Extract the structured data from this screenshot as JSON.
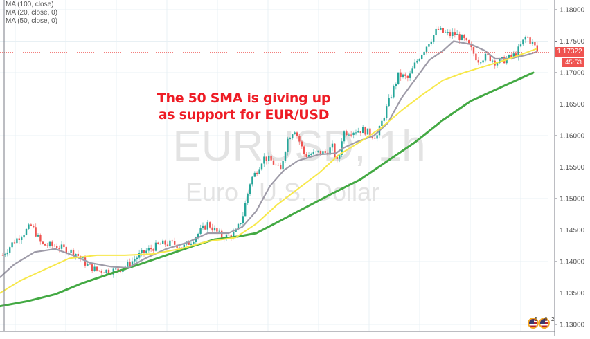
{
  "chart_data": {
    "type": "candlestick",
    "symbol": "EURUSD",
    "timeframe": "1h",
    "watermark_title": "EURUSD, 1h",
    "watermark_subtitle": "Euro / U.S. Dollar",
    "title": "The 50 SMA is giving up as support for EUR/USD",
    "ylabel": "",
    "xlabel": "",
    "ylim": [
      1.128,
      1.1815
    ],
    "yticks": [
      1.13,
      1.135,
      1.14,
      1.145,
      1.15,
      1.155,
      1.16,
      1.165,
      1.17,
      1.175,
      1.18
    ],
    "ytick_labels": [
      "1.13000",
      "1.13500",
      "1.14000",
      "1.14500",
      "1.15000",
      "1.15500",
      "1.16000",
      "1.16500",
      "1.17000",
      "1.17500",
      "1.18000"
    ],
    "grid": true,
    "legend_position": "top-left",
    "last_price": 1.17322,
    "last_price_label": "1.17322",
    "countdown": "45:53",
    "up_color": "#26a69a",
    "down_color": "#ef5350",
    "indicators": [
      {
        "name": "MA (100, close)",
        "color": "#43a943",
        "width": 3,
        "points": [
          [
            0,
            1.1329
          ],
          [
            40,
            1.1337
          ],
          [
            80,
            1.1348
          ],
          [
            120,
            1.1366
          ],
          [
            160,
            1.1381
          ],
          [
            200,
            1.1395
          ],
          [
            240,
            1.141
          ],
          [
            280,
            1.1425
          ],
          [
            310,
            1.1435
          ],
          [
            345,
            1.144
          ],
          [
            370,
            1.1445
          ],
          [
            400,
            1.1462
          ],
          [
            440,
            1.1485
          ],
          [
            480,
            1.1508
          ],
          [
            520,
            1.153
          ],
          [
            560,
            1.156
          ],
          [
            600,
            1.159
          ],
          [
            640,
            1.1625
          ],
          [
            680,
            1.1655
          ],
          [
            720,
            1.1675
          ],
          [
            770,
            1.17
          ]
        ]
      },
      {
        "name": "MA (20, close, 0)",
        "color": "#9e9ba8",
        "width": 2.2,
        "points": [
          [
            0,
            1.1375
          ],
          [
            20,
            1.1395
          ],
          [
            50,
            1.1415
          ],
          [
            80,
            1.142
          ],
          [
            105,
            1.141
          ],
          [
            130,
            1.1398
          ],
          [
            160,
            1.1392
          ],
          [
            185,
            1.139
          ],
          [
            210,
            1.1405
          ],
          [
            240,
            1.142
          ],
          [
            270,
            1.143
          ],
          [
            300,
            1.1445
          ],
          [
            330,
            1.1445
          ],
          [
            350,
            1.1455
          ],
          [
            370,
            1.148
          ],
          [
            390,
            1.152
          ],
          [
            410,
            1.1545
          ],
          [
            430,
            1.156
          ],
          [
            460,
            1.157
          ],
          [
            485,
            1.1572
          ],
          [
            495,
            1.158
          ],
          [
            515,
            1.159
          ],
          [
            540,
            1.16
          ],
          [
            560,
            1.162
          ],
          [
            580,
            1.166
          ],
          [
            600,
            1.169
          ],
          [
            620,
            1.172
          ],
          [
            640,
            1.1735
          ],
          [
            655,
            1.175
          ],
          [
            680,
            1.1745
          ],
          [
            700,
            1.1735
          ],
          [
            715,
            1.1722
          ],
          [
            735,
            1.1722
          ],
          [
            760,
            1.1728
          ],
          [
            775,
            1.1733
          ]
        ]
      },
      {
        "name": "MA (50, close, 0)",
        "color": "#f7e84a",
        "width": 2,
        "points": [
          [
            0,
            1.135
          ],
          [
            30,
            1.137
          ],
          [
            60,
            1.1385
          ],
          [
            100,
            1.1405
          ],
          [
            140,
            1.141
          ],
          [
            180,
            1.141
          ],
          [
            220,
            1.1412
          ],
          [
            260,
            1.142
          ],
          [
            300,
            1.1432
          ],
          [
            340,
            1.1438
          ],
          [
            370,
            1.146
          ],
          [
            400,
            1.149
          ],
          [
            430,
            1.1515
          ],
          [
            460,
            1.154
          ],
          [
            490,
            1.157
          ],
          [
            520,
            1.159
          ],
          [
            550,
            1.1612
          ],
          [
            580,
            1.164
          ],
          [
            610,
            1.1665
          ],
          [
            640,
            1.1688
          ],
          [
            670,
            1.17
          ],
          [
            700,
            1.171
          ],
          [
            730,
            1.172
          ],
          [
            760,
            1.1732
          ],
          [
            775,
            1.1738
          ]
        ]
      }
    ]
  },
  "legend": {
    "items": [
      "MA (100, close)",
      "MA (20, close, 0)",
      "MA (50, close, 0)"
    ]
  },
  "annotation": {
    "line1": "The 50 SMA is giving up",
    "line2": "as support for EUR/USD"
  },
  "axis": {
    "price_label": "1.17322",
    "timer_label": "45:53"
  },
  "events": {
    "labels": [
      "5",
      "6",
      "2"
    ]
  },
  "colors": {
    "background": "#ffffff",
    "grid": "#e8f0f4",
    "axis_border": "#787b86",
    "annotation": "#ee1c25",
    "price_line": "#ef5350",
    "watermark": "#e3e3e3"
  }
}
